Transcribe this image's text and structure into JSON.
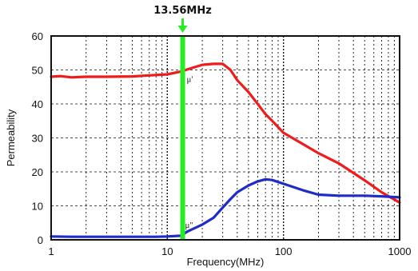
{
  "chart_data": {
    "type": "line",
    "title": "",
    "xlabel": "Frequency(MHz)",
    "ylabel": "Permeability",
    "x_scale": "log",
    "xlim": [
      1,
      1000
    ],
    "ylim": [
      0,
      60
    ],
    "x_ticks": [
      1,
      10,
      100,
      1000
    ],
    "x_tick_labels": [
      "1",
      "10",
      "100",
      "1000"
    ],
    "y_ticks": [
      0,
      10,
      20,
      30,
      40,
      50,
      60
    ],
    "y_tick_labels": [
      "0",
      "10",
      "20",
      "30",
      "40",
      "50",
      "60"
    ],
    "grid": true,
    "marker": {
      "x": 13.56,
      "label": "13.56MHz",
      "color": "#22ee22"
    },
    "series": [
      {
        "name": "μ'",
        "color": "#ee1c1c",
        "x": [
          1,
          1.2,
          1.5,
          2,
          3,
          5,
          7,
          10,
          13,
          16,
          20,
          25,
          30,
          35,
          40,
          50,
          60,
          70,
          80,
          100,
          150,
          200,
          300,
          500,
          700,
          1000
        ],
        "y": [
          48,
          48.2,
          47.8,
          48,
          48,
          48.1,
          48.4,
          48.7,
          49.5,
          50.5,
          51.5,
          51.8,
          51.8,
          50,
          47,
          43.5,
          40,
          37,
          35,
          31.5,
          28,
          25.5,
          22.5,
          17.5,
          14,
          11
        ]
      },
      {
        "name": "μ''",
        "color": "#1f2cc8",
        "x": [
          1,
          1.5,
          2,
          3,
          5,
          8,
          10,
          13,
          15,
          20,
          25,
          30,
          35,
          40,
          50,
          60,
          70,
          80,
          100,
          150,
          200,
          300,
          500,
          700,
          1000
        ],
        "y": [
          1,
          0.9,
          0.9,
          0.9,
          0.9,
          0.9,
          1,
          1.2,
          2.5,
          4.5,
          6.5,
          9.5,
          12,
          14,
          16,
          17.2,
          17.8,
          17.6,
          16.5,
          14.5,
          13.3,
          13,
          13,
          12.8,
          12.5
        ]
      }
    ],
    "annotations": [
      "μ'",
      "μ''"
    ]
  }
}
